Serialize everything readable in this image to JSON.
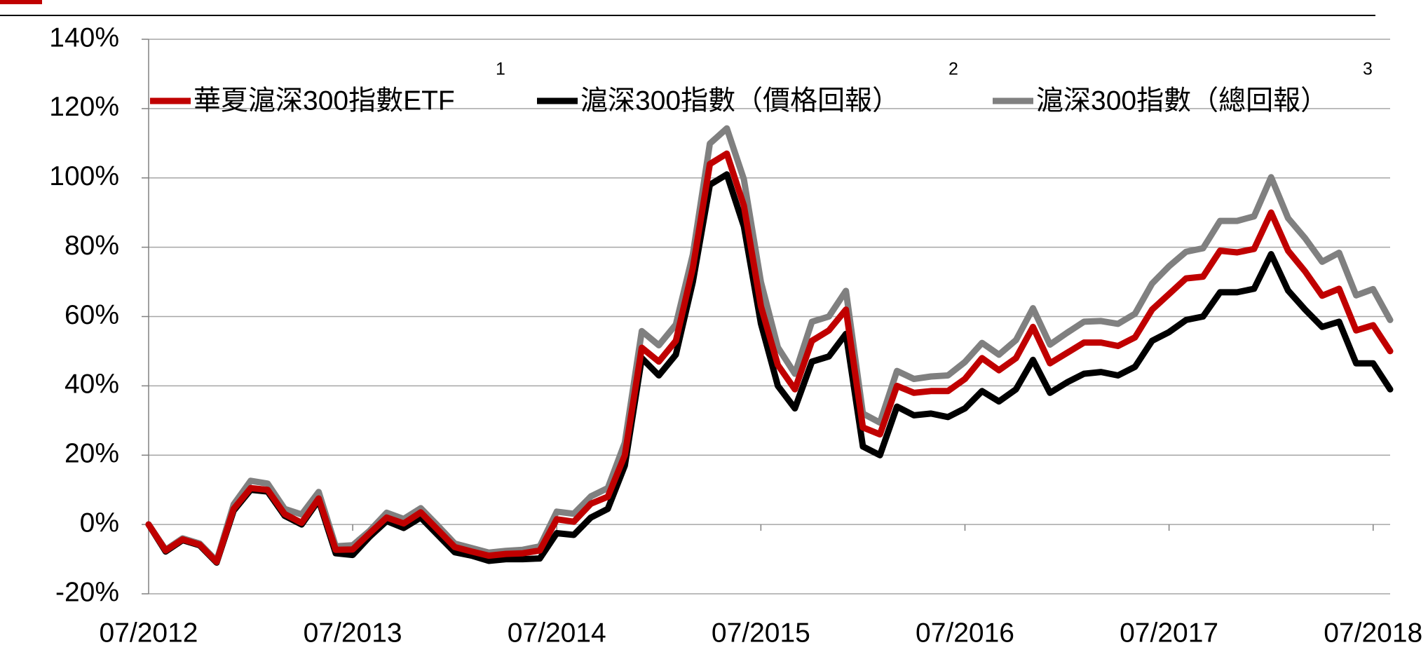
{
  "chart_data": {
    "type": "line",
    "categories": [
      "07/2012",
      null,
      null,
      null,
      null,
      null,
      null,
      null,
      null,
      null,
      null,
      null,
      "07/2013",
      null,
      null,
      null,
      null,
      null,
      null,
      null,
      null,
      null,
      null,
      null,
      "07/2014",
      null,
      null,
      null,
      null,
      null,
      null,
      null,
      null,
      null,
      null,
      null,
      "07/2015",
      null,
      null,
      null,
      null,
      null,
      null,
      null,
      null,
      null,
      null,
      null,
      "07/2016",
      null,
      null,
      null,
      null,
      null,
      null,
      null,
      null,
      null,
      null,
      null,
      "07/2017",
      null,
      null,
      null,
      null,
      null,
      null,
      null,
      null,
      null,
      null,
      null,
      "07/2018",
      null
    ],
    "series": [
      {
        "name": "華夏滬深300指數ETF",
        "note": "1",
        "color": "#c00000",
        "values": [
          0,
          -7.5,
          -4.3,
          -5.8,
          -10.8,
          4.5,
          10.5,
          10,
          3,
          0.5,
          7.5,
          -7.3,
          -7.2,
          -2.5,
          2,
          0.3,
          3.5,
          -1.5,
          -6.5,
          -7.8,
          -9,
          -8.5,
          -8.3,
          -7.5,
          1.5,
          0.8,
          6,
          8,
          20,
          51,
          47,
          53,
          74,
          104,
          107,
          92,
          63,
          46,
          39,
          53,
          56,
          62,
          28,
          26,
          40,
          38,
          38.5,
          38.5,
          42,
          48,
          44.5,
          48,
          57,
          46.5,
          49.5,
          52.5,
          52.5,
          51.5,
          54,
          62,
          66.5,
          71,
          71.5,
          79,
          78.5,
          79.5,
          90,
          79,
          73,
          66,
          68,
          56,
          57.5,
          50
        ]
      },
      {
        "name": "滬深300指數（價格回報）",
        "note": "2",
        "color": "#000000",
        "values": [
          0,
          -7.8,
          -4.5,
          -6,
          -11,
          4,
          10,
          9.5,
          2.5,
          0,
          7,
          -8.3,
          -8.8,
          -3.5,
          1,
          -1,
          2,
          -3,
          -8,
          -9,
          -10.5,
          -10,
          -10,
          -9.8,
          -2.5,
          -3,
          2,
          4.5,
          17,
          48,
          43,
          49,
          70,
          98,
          101,
          86,
          58,
          40,
          33.5,
          47,
          48.5,
          55,
          22.5,
          20,
          34,
          31.5,
          32,
          31,
          33.5,
          38.5,
          35.5,
          39,
          47.5,
          38,
          41,
          43.5,
          44,
          43,
          45.5,
          53,
          55.5,
          59,
          60,
          67,
          67,
          68,
          78,
          67.5,
          62,
          57,
          58.5,
          46.5,
          46.5,
          39
        ]
      },
      {
        "name": "滬深300指數（總回報）",
        "note": "3",
        "color": "#808080",
        "values": [
          0,
          -7.3,
          -4,
          -5.5,
          -10.5,
          5.8,
          12.6,
          11.8,
          4.5,
          2.9,
          9.4,
          -6.3,
          -6,
          -1.8,
          3.4,
          1.6,
          4.7,
          -0.3,
          -5.5,
          -6.8,
          -8.1,
          -7.6,
          -7.3,
          -6.3,
          3.7,
          3.1,
          8.1,
          10.5,
          23.6,
          55.8,
          51.7,
          57.7,
          77.9,
          109.9,
          114.3,
          99.6,
          70,
          51.1,
          43.5,
          58.5,
          60,
          67.4,
          32,
          29.4,
          44.3,
          42,
          42.7,
          43,
          46.9,
          52.4,
          49,
          53.2,
          62.4,
          51.9,
          55.3,
          58.5,
          58.7,
          57.9,
          60.8,
          69.5,
          74.5,
          78.7,
          79.7,
          87.6,
          87.6,
          88.9,
          100.2,
          88.4,
          82.6,
          75.8,
          78.4,
          66.1,
          67.9,
          59
        ]
      }
    ],
    "ylim": [
      -20,
      140
    ],
    "yticks": [
      {
        "value": -20,
        "label": "-20%"
      },
      {
        "value": 0,
        "label": "0%"
      },
      {
        "value": 20,
        "label": "20%"
      },
      {
        "value": 40,
        "label": "40%"
      },
      {
        "value": 60,
        "label": "60%"
      },
      {
        "value": 80,
        "label": "80%"
      },
      {
        "value": 100,
        "label": "100%"
      },
      {
        "value": 120,
        "label": "120%"
      },
      {
        "value": 140,
        "label": "140%"
      }
    ],
    "grid": true,
    "legend": "top"
  }
}
